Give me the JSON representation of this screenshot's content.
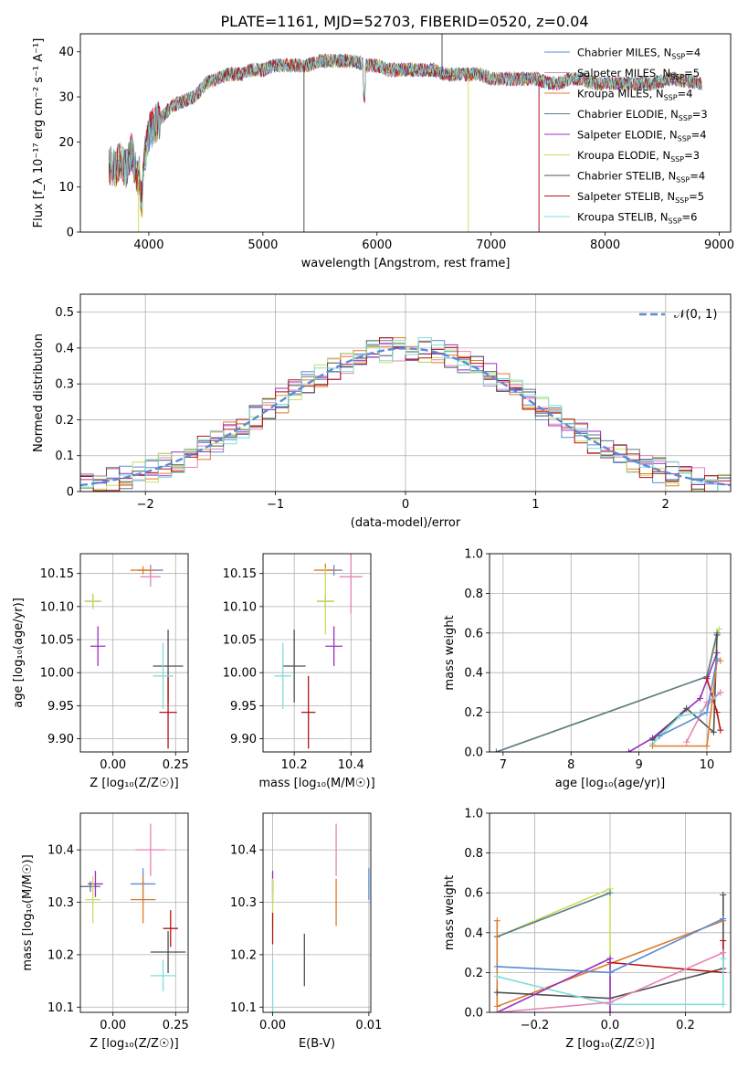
{
  "figure": {
    "title": "PLATE=1161, MJD=52703, FIBERID=0520, z=0.04"
  },
  "colors": {
    "Chabrier MILES": "#5b8bd6",
    "Salpeter MILES": "#e585b8",
    "Kroupa MILES": "#e07b28",
    "Chabrier ELODIE": "#5a7a8a",
    "Salpeter ELODIE": "#9b2fc0",
    "Kroupa ELODIE": "#c8e05a",
    "Chabrier STELIB": "#505050",
    "Salpeter STELIB": "#b31515",
    "Kroupa STELIB": "#80dcdc"
  },
  "chart_data": [
    {
      "id": "spectrum",
      "type": "line",
      "title": "PLATE=1161, MJD=52703, FIBERID=0520, z=0.04",
      "xlabel": "wavelength [Angstrom, rest frame]",
      "ylabel": "Flux [f_λ 10⁻¹⁷ erg cm⁻² s⁻¹ A⁻¹]",
      "xlim": [
        3400,
        9100
      ],
      "ylim": [
        0,
        44
      ],
      "xticks": [
        4000,
        5000,
        6000,
        7000,
        8000,
        9000
      ],
      "yticks": [
        0,
        10,
        20,
        30,
        40
      ],
      "legend_position": "top-right",
      "legend": [
        {
          "name": "Chabrier MILES",
          "nssp": "4"
        },
        {
          "name": "Salpeter MILES",
          "nssp": "5"
        },
        {
          "name": "Kroupa MILES",
          "nssp": "4"
        },
        {
          "name": "Chabrier ELODIE",
          "nssp": "3"
        },
        {
          "name": "Salpeter ELODIE",
          "nssp": "4"
        },
        {
          "name": "Kroupa ELODIE",
          "nssp": "3"
        },
        {
          "name": "Chabrier STELIB",
          "nssp": "4"
        },
        {
          "name": "Salpeter STELIB",
          "nssp": "5"
        },
        {
          "name": "Kroupa STELIB",
          "nssp": "6"
        }
      ],
      "continuum": {
        "x": [
          3650,
          3700,
          3750,
          3800,
          3850,
          3900,
          3950,
          4000,
          4050,
          4100,
          4200,
          4300,
          4400,
          4500,
          4600,
          4700,
          4800,
          4900,
          5000,
          5100,
          5200,
          5300,
          5400,
          5500,
          5600,
          5700,
          5800,
          5900,
          6000,
          6100,
          6200,
          6300,
          6400,
          6500,
          6600,
          6700,
          6800,
          6900,
          7000,
          7100,
          7200,
          7300,
          7400,
          7500,
          7600,
          7700,
          7800,
          7900,
          8000,
          8200,
          8400,
          8600,
          8850
        ],
        "y": [
          15,
          14,
          16,
          14,
          18,
          12,
          14,
          22,
          24,
          25,
          28,
          29,
          30,
          33,
          34,
          35,
          35,
          36,
          36,
          37,
          37,
          37,
          37,
          38,
          38,
          38,
          38,
          37,
          37,
          36,
          36,
          36,
          36,
          36,
          35,
          35,
          35,
          35,
          34,
          34,
          34,
          34,
          34,
          33,
          33,
          34,
          34,
          33,
          33,
          33,
          33,
          34,
          33
        ]
      },
      "spikes": [
        {
          "x": 3910,
          "y": 0,
          "series": "Kroupa ELODIE"
        },
        {
          "x": 5360,
          "y": 0,
          "series": "Chabrier STELIB"
        },
        {
          "x": 6570,
          "y": 44,
          "series": "Chabrier STELIB"
        },
        {
          "x": 6800,
          "y": 0,
          "series": "Kroupa ELODIE"
        },
        {
          "x": 7420,
          "y": 0,
          "series": "Salpeter STELIB"
        }
      ]
    },
    {
      "id": "residuals",
      "type": "line",
      "xlabel": "(data-model)/error",
      "ylabel": "Normed distribution",
      "xlim": [
        -2.5,
        2.5
      ],
      "ylim": [
        0,
        0.55
      ],
      "xticks": [
        -2,
        -1,
        0,
        1,
        2
      ],
      "yticks": [
        0.0,
        0.1,
        0.2,
        0.3,
        0.4,
        0.5
      ],
      "grid": true,
      "legend": "𝒩(0, 1)",
      "legend_position": "top-right",
      "bin_width": 0.1,
      "normal_curve": {
        "mean": 0,
        "sigma": 1
      }
    },
    {
      "id": "age-vs-Z",
      "type": "scatter",
      "xlabel": "Z [log₁₀(Z/Z☉)]",
      "ylabel": "age  [log₁₀(age/yr)]",
      "xlim": [
        -0.13,
        0.3
      ],
      "ylim": [
        9.88,
        10.18
      ],
      "xticks": [
        "0.00",
        "0.25"
      ],
      "xtick_values": [
        0,
        0.25
      ],
      "yticks": [
        "9.90",
        "9.95",
        "10.00",
        "10.05",
        "10.10",
        "10.15"
      ],
      "ytick_values": [
        9.9,
        9.95,
        10.0,
        10.05,
        10.1,
        10.15
      ],
      "grid": true,
      "points": [
        {
          "series": "Chabrier MILES",
          "x": 0.15,
          "y": 10.155,
          "xerr": 0.05,
          "yerr": 0.008
        },
        {
          "series": "Salpeter MILES",
          "x": 0.15,
          "y": 10.145,
          "xerr": 0.04,
          "yerr": 0.015
        },
        {
          "series": "Kroupa MILES",
          "x": 0.12,
          "y": 10.155,
          "xerr": 0.05,
          "yerr": 0.006
        },
        {
          "series": "Chabrier ELODIE",
          "x": -0.08,
          "y": 10.108,
          "xerr": 0.03,
          "yerr": 0.01
        },
        {
          "series": "Salpeter ELODIE",
          "x": -0.06,
          "y": 10.04,
          "xerr": 0.03,
          "yerr": 0.03
        },
        {
          "series": "Kroupa ELODIE",
          "x": -0.08,
          "y": 10.108,
          "xerr": 0.035,
          "yerr": 0.012
        },
        {
          "series": "Chabrier STELIB",
          "x": 0.22,
          "y": 10.01,
          "xerr": 0.06,
          "yerr": 0.055
        },
        {
          "series": "Salpeter STELIB",
          "x": 0.22,
          "y": 9.94,
          "xerr": 0.035,
          "yerr": 0.055
        },
        {
          "series": "Kroupa STELIB",
          "x": 0.2,
          "y": 9.995,
          "xerr": 0.04,
          "yerr": 0.05
        }
      ]
    },
    {
      "id": "age-vs-mass",
      "type": "scatter",
      "xlabel": "mass [log₁₀(M/M☉)]",
      "xlim": [
        10.09,
        10.47
      ],
      "ylim": [
        9.88,
        10.18
      ],
      "xticks": [
        "10.2",
        "10.4"
      ],
      "xtick_values": [
        10.2,
        10.4
      ],
      "yticks": [
        "9.90",
        "9.95",
        "10.00",
        "10.05",
        "10.10",
        "10.15"
      ],
      "ytick_values": [
        9.9,
        9.95,
        10.0,
        10.05,
        10.1,
        10.15
      ],
      "grid": true,
      "points": [
        {
          "series": "Chabrier MILES",
          "x": 10.34,
          "y": 10.155,
          "xerr": 0.03,
          "yerr": 0.008
        },
        {
          "series": "Salpeter MILES",
          "x": 10.4,
          "y": 10.145,
          "xerr": 0.04,
          "yerr": 0.055
        },
        {
          "series": "Kroupa MILES",
          "x": 10.31,
          "y": 10.155,
          "xerr": 0.04,
          "yerr": 0.01
        },
        {
          "series": "Chabrier ELODIE",
          "x": 10.31,
          "y": 10.108,
          "xerr": 0.03,
          "yerr": 0.01
        },
        {
          "series": "Salpeter ELODIE",
          "x": 10.34,
          "y": 10.04,
          "xerr": 0.03,
          "yerr": 0.03
        },
        {
          "series": "Kroupa ELODIE",
          "x": 10.31,
          "y": 10.108,
          "xerr": 0.03,
          "yerr": 0.05
        },
        {
          "series": "Chabrier STELIB",
          "x": 10.2,
          "y": 10.01,
          "xerr": 0.04,
          "yerr": 0.055
        },
        {
          "series": "Salpeter STELIB",
          "x": 10.25,
          "y": 9.94,
          "xerr": 0.025,
          "yerr": 0.055
        },
        {
          "series": "Kroupa STELIB",
          "x": 10.16,
          "y": 9.995,
          "xerr": 0.03,
          "yerr": 0.05
        }
      ]
    },
    {
      "id": "mass-weight-vs-age",
      "type": "line",
      "xlabel": "age  [log₁₀(age/yr)]",
      "ylabel": "mass weight",
      "xlim": [
        6.8,
        10.35
      ],
      "ylim": [
        0,
        1
      ],
      "xticks": [
        7,
        8,
        9,
        10
      ],
      "yticks": [
        "0.0",
        "0.2",
        "0.4",
        "0.6",
        "0.8",
        "1.0"
      ],
      "ytick_values": [
        0,
        0.2,
        0.4,
        0.6,
        0.8,
        1.0
      ],
      "grid": true,
      "series": [
        {
          "name": "Kroupa ELODIE",
          "x": [
            6.9,
            10.0,
            10.18
          ],
          "y": [
            0.0,
            0.38,
            0.62
          ]
        },
        {
          "name": "Chabrier ELODIE",
          "x": [
            6.9,
            10.0,
            10.15
          ],
          "y": [
            0.0,
            0.38,
            0.6
          ]
        },
        {
          "name": "Salpeter ELODIE",
          "x": [
            8.85,
            9.2,
            9.9,
            10.15
          ],
          "y": [
            0.0,
            0.07,
            0.27,
            0.5
          ]
        },
        {
          "name": "Chabrier STELIB",
          "x": [
            9.2,
            9.7,
            10.1,
            10.15
          ],
          "y": [
            0.06,
            0.22,
            0.1,
            0.59
          ]
        },
        {
          "name": "Salpeter STELIB",
          "x": [
            10.0,
            10.15,
            10.2
          ],
          "y": [
            0.37,
            0.2,
            0.11
          ]
        },
        {
          "name": "Kroupa STELIB",
          "x": [
            9.2,
            9.6,
            9.9,
            10.2
          ],
          "y": [
            0.04,
            0.18,
            0.2,
            0.3
          ]
        },
        {
          "name": "Kroupa MILES",
          "x": [
            9.2,
            10.0,
            10.15,
            10.2
          ],
          "y": [
            0.03,
            0.03,
            0.46,
            0.46
          ]
        },
        {
          "name": "Salpeter MILES",
          "x": [
            9.7,
            10.0,
            10.2
          ],
          "y": [
            0.05,
            0.25,
            0.3
          ]
        },
        {
          "name": "Chabrier MILES",
          "x": [
            9.3,
            10.0,
            10.15
          ],
          "y": [
            0.08,
            0.2,
            0.47
          ]
        }
      ]
    },
    {
      "id": "mass-vs-Z",
      "type": "scatter",
      "xlabel": "Z [log₁₀(Z/Z☉)]",
      "ylabel": "mass [log₁₀(M/M☉)]",
      "xlim": [
        -0.13,
        0.3
      ],
      "ylim": [
        10.09,
        10.47
      ],
      "xticks": [
        "0.00",
        "0.25"
      ],
      "xtick_values": [
        0,
        0.25
      ],
      "yticks": [
        "10.1",
        "10.2",
        "10.3",
        "10.4"
      ],
      "ytick_values": [
        10.1,
        10.2,
        10.3,
        10.4
      ],
      "grid": true,
      "points": [
        {
          "series": "Chabrier MILES",
          "x": 0.12,
          "y": 10.335,
          "xerr": 0.05,
          "yerr": 0.03
        },
        {
          "series": "Salpeter MILES",
          "x": 0.15,
          "y": 10.4,
          "xerr": 0.06,
          "yerr": 0.05
        },
        {
          "series": "Kroupa MILES",
          "x": 0.12,
          "y": 10.305,
          "xerr": 0.05,
          "yerr": 0.045
        },
        {
          "series": "Chabrier ELODIE",
          "x": -0.09,
          "y": 10.33,
          "xerr": 0.04,
          "yerr": 0.01
        },
        {
          "series": "Salpeter ELODIE",
          "x": -0.07,
          "y": 10.335,
          "xerr": 0.03,
          "yerr": 0.025
        },
        {
          "series": "Kroupa ELODIE",
          "x": -0.08,
          "y": 10.305,
          "xerr": 0.03,
          "yerr": 0.045
        },
        {
          "series": "Chabrier STELIB",
          "x": 0.22,
          "y": 10.205,
          "xerr": 0.07,
          "yerr": 0.04
        },
        {
          "series": "Salpeter STELIB",
          "x": 0.23,
          "y": 10.25,
          "xerr": 0.03,
          "yerr": 0.035
        },
        {
          "series": "Kroupa STELIB",
          "x": 0.2,
          "y": 10.16,
          "xerr": 0.05,
          "yerr": 0.03
        }
      ]
    },
    {
      "id": "mass-vs-ebv",
      "type": "scatter",
      "xlabel": "E(B-V)",
      "xlim": [
        -0.001,
        0.0102
      ],
      "ylim": [
        10.09,
        10.47
      ],
      "xticks": [
        "0.00",
        "0.01"
      ],
      "xtick_values": [
        0,
        0.01
      ],
      "yticks": [
        "10.1",
        "10.2",
        "10.3",
        "10.4"
      ],
      "ytick_values": [
        10.1,
        10.2,
        10.3,
        10.4
      ],
      "grid": true,
      "points": [
        {
          "series": "Chabrier MILES",
          "x": 0.01,
          "y": 10.335,
          "yerr": 0.03
        },
        {
          "series": "Salpeter MILES",
          "x": 0.0066,
          "y": 10.4,
          "yerr": 0.05
        },
        {
          "series": "Kroupa MILES",
          "x": 0.0066,
          "y": 10.3,
          "yerr": 0.045
        },
        {
          "series": "Chabrier ELODIE",
          "x": 0.0,
          "y": 10.33,
          "yerr": 0.01
        },
        {
          "series": "Salpeter ELODIE",
          "x": 0.0,
          "y": 10.33,
          "yerr": 0.03
        },
        {
          "series": "Kroupa ELODIE",
          "x": 0.0,
          "y": 10.3,
          "yerr": 0.045
        },
        {
          "series": "Chabrier STELIB",
          "x": 0.0033,
          "y": 10.19,
          "yerr": 0.05
        },
        {
          "series": "Salpeter STELIB",
          "x": 0.0,
          "y": 10.25,
          "yerr": 0.03
        },
        {
          "series": "Kroupa STELIB",
          "x": 0.0,
          "y": 10.14,
          "yerr": 0.05
        }
      ]
    },
    {
      "id": "mass-weight-vs-Z",
      "type": "line",
      "xlabel": "Z [log₁₀(Z/Z☉)]",
      "ylabel": "mass weight",
      "xlim": [
        -0.32,
        0.32
      ],
      "ylim": [
        0,
        1
      ],
      "xticks": [
        "−0.2",
        "0.0",
        "0.2"
      ],
      "xtick_values": [
        -0.2,
        0,
        0.2
      ],
      "yticks": [
        "0.0",
        "0.2",
        "0.4",
        "0.6",
        "0.8",
        "1.0"
      ],
      "ytick_values": [
        0,
        0.2,
        0.4,
        0.6,
        0.8,
        1.0
      ],
      "grid": true,
      "series": [
        {
          "name": "Kroupa ELODIE",
          "x": [
            -0.3,
            0.0,
            0.0
          ],
          "y": [
            0.38,
            0.62,
            0.0
          ]
        },
        {
          "name": "Chabrier ELODIE",
          "x": [
            -0.3,
            0.0
          ],
          "y": [
            0.38,
            0.6
          ]
        },
        {
          "name": "Kroupa MILES",
          "x": [
            -0.3,
            -0.3,
            0.3
          ],
          "y": [
            0.46,
            0.03,
            0.46
          ]
        },
        {
          "name": "Chabrier STELIB",
          "x": [
            -0.3,
            0.0,
            0.3,
            0.3
          ],
          "y": [
            0.1,
            0.07,
            0.22,
            0.59
          ]
        },
        {
          "name": "Salpeter STELIB",
          "x": [
            0.0,
            0.3,
            0.3
          ],
          "y": [
            0.25,
            0.2,
            0.36
          ]
        },
        {
          "name": "Kroupa STELIB",
          "x": [
            -0.3,
            0.0,
            0.3,
            0.3
          ],
          "y": [
            0.18,
            0.04,
            0.04,
            0.27
          ]
        },
        {
          "name": "Salpeter ELODIE",
          "x": [
            -0.3,
            0.0,
            0.0
          ],
          "y": [
            0.0,
            0.27,
            0.0
          ]
        },
        {
          "name": "Salpeter MILES",
          "x": [
            -0.3,
            0.0,
            0.3
          ],
          "y": [
            0.0,
            0.05,
            0.3
          ]
        },
        {
          "name": "Chabrier MILES",
          "x": [
            -0.3,
            0.0,
            0.3
          ],
          "y": [
            0.23,
            0.2,
            0.47
          ]
        }
      ]
    }
  ]
}
